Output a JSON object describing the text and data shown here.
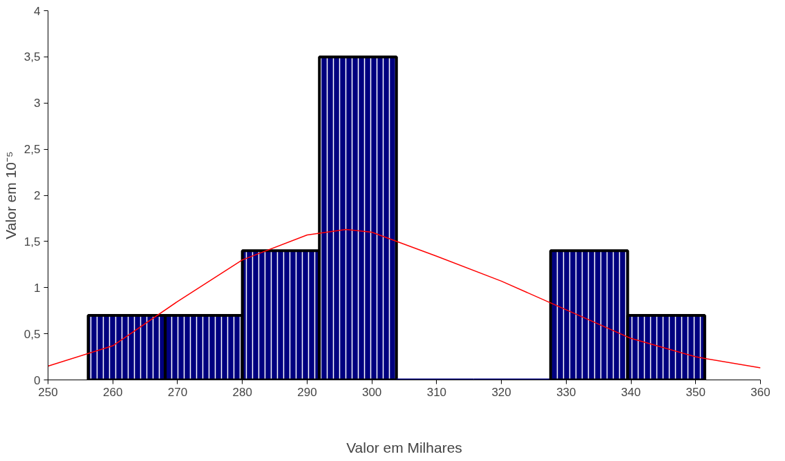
{
  "chart_data": {
    "type": "histogram",
    "xlabel": "Valor em Milhares",
    "ylabel": "Valor em 10⁻⁵",
    "xlim": [
      250,
      360
    ],
    "xticks": [
      250,
      260,
      270,
      280,
      290,
      300,
      310,
      320,
      330,
      340,
      350,
      360
    ],
    "ylim": [
      0,
      4
    ],
    "yticks": [
      0,
      {
        "value": 0.5,
        "label": "0,5"
      },
      1,
      {
        "value": 1.5,
        "label": "1,5"
      },
      2,
      {
        "value": 2.5,
        "label": "2,5"
      },
      3,
      {
        "value": 3.5,
        "label": "3,5"
      },
      4
    ],
    "grid": false,
    "series": [
      {
        "color": "#00007f",
        "bins": [
          256.2,
          268.1,
          280,
          291.9,
          303.8,
          315.7,
          327.6,
          339.5,
          351.4
        ],
        "values": [
          0.7,
          0.7,
          1.4,
          3.5,
          0,
          0,
          1.4,
          0.7
        ]
      },
      {
        "type": "line",
        "color": "#ff0000",
        "x": [
          250,
          260,
          270,
          280,
          290,
          296,
          300,
          310,
          320,
          330,
          340,
          350,
          360
        ],
        "values": [
          0.15,
          0.37,
          0.85,
          1.3,
          1.57,
          1.63,
          1.6,
          1.34,
          1.07,
          0.76,
          0.45,
          0.25,
          0.13
        ]
      }
    ]
  }
}
